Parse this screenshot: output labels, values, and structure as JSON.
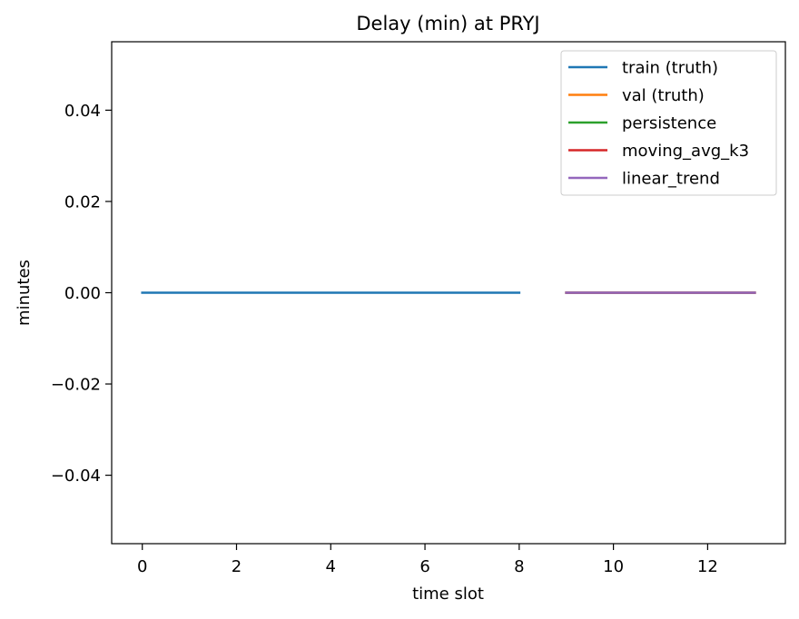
{
  "chart_data": {
    "type": "line",
    "title": "Delay (min) at PRYJ",
    "xlabel": "time slot",
    "ylabel": "minutes",
    "xlim": [
      -0.65,
      13.65
    ],
    "ylim": [
      -0.055,
      0.055
    ],
    "xticks": [
      0,
      2,
      4,
      6,
      8,
      10,
      12
    ],
    "xtick_labels": [
      "0",
      "2",
      "4",
      "6",
      "8",
      "10",
      "12"
    ],
    "yticks": [
      -0.04,
      -0.02,
      0.0,
      0.02,
      0.04
    ],
    "ytick_labels": [
      "−0.04",
      "−0.02",
      "0.00",
      "0.02",
      "0.04"
    ],
    "grid": false,
    "legend_position": "top-right",
    "series": [
      {
        "name": "train (truth)",
        "color": "#1f77b4",
        "x": [
          0,
          1,
          2,
          3,
          4,
          5,
          6,
          7,
          8
        ],
        "y": [
          0,
          0,
          0,
          0,
          0,
          0,
          0,
          0,
          0
        ]
      },
      {
        "name": "val (truth)",
        "color": "#ff7f0e",
        "x": [
          9,
          10,
          11,
          12,
          13
        ],
        "y": [
          0,
          0,
          0,
          0,
          0
        ]
      },
      {
        "name": "persistence",
        "color": "#2ca02c",
        "x": [
          9,
          10,
          11,
          12,
          13
        ],
        "y": [
          0,
          0,
          0,
          0,
          0
        ]
      },
      {
        "name": "moving_avg_k3",
        "color": "#d62728",
        "x": [
          9,
          10,
          11,
          12,
          13
        ],
        "y": [
          0,
          0,
          0,
          0,
          0
        ]
      },
      {
        "name": "linear_trend",
        "color": "#9467bd",
        "x": [
          9,
          10,
          11,
          12,
          13
        ],
        "y": [
          0,
          0,
          0,
          0,
          0
        ]
      }
    ]
  }
}
